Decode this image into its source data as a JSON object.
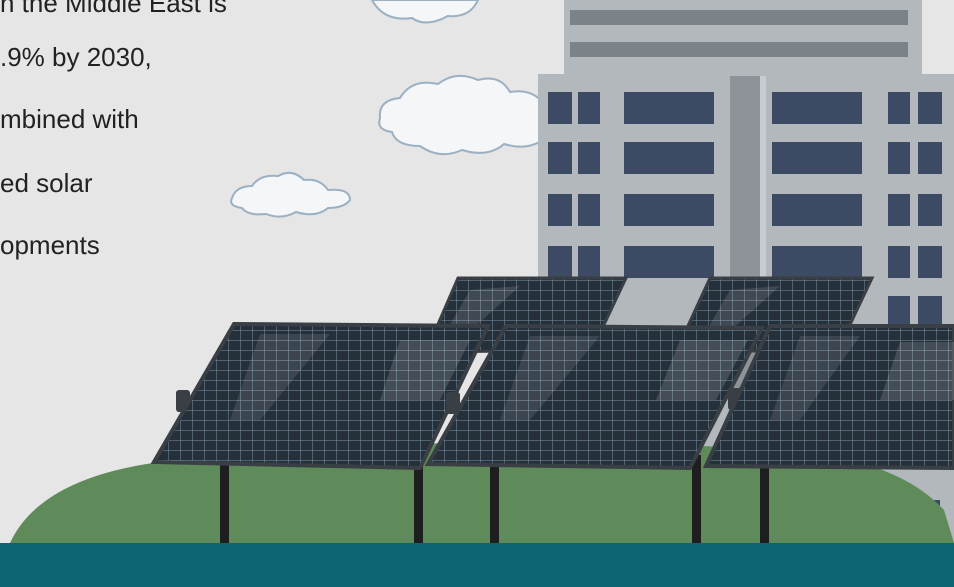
{
  "caption": {
    "lines": [
      "n the Middle East is",
      ".9% by 2030,",
      "mbined with",
      "ed solar",
      "opments"
    ]
  },
  "illustration": {
    "icons": [
      "cloud-icon",
      "building-icon",
      "solar-panel-icon",
      "grass-hill-icon"
    ]
  },
  "colors": {
    "background": "#e6e6e6",
    "building": "#aeb4b8",
    "window": "#3d4a63",
    "ground": "#5f8a5a",
    "footer": "#0b6573",
    "panel": "#27313d"
  }
}
